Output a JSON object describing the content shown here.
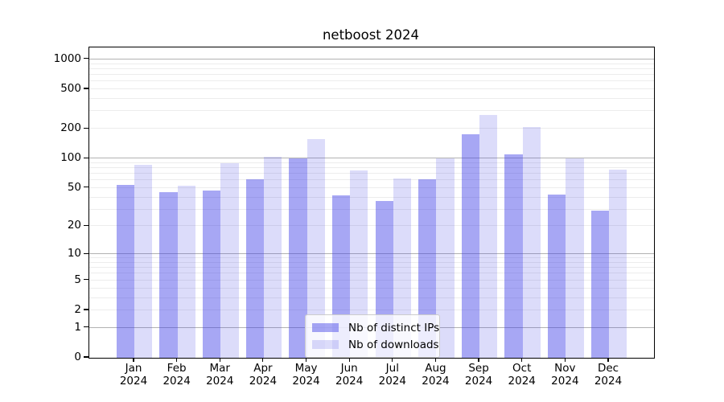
{
  "chart_data": {
    "type": "bar",
    "title": "netboost 2024",
    "year": "2024",
    "categories": [
      "Jan",
      "Feb",
      "Mar",
      "Apr",
      "May",
      "Jun",
      "Jul",
      "Aug",
      "Sep",
      "Oct",
      "Nov",
      "Dec"
    ],
    "series": [
      {
        "name": "Nb of distinct IPs",
        "color": "rgba(60,60,230,0.45)",
        "values": [
          54,
          45,
          47,
          61,
          100,
          42,
          37,
          61,
          177,
          110,
          43,
          29
        ]
      },
      {
        "name": "Nb of downloads",
        "color": "rgba(60,60,230,0.18)",
        "values": [
          87,
          53,
          90,
          104,
          158,
          76,
          62,
          100,
          277,
          210,
          100,
          77
        ]
      }
    ],
    "xlabel": "",
    "ylabel": "",
    "y_scale": "log10(1+x)",
    "y_ticks": [
      0,
      1,
      2,
      5,
      10,
      20,
      50,
      100,
      200,
      500,
      1000
    ],
    "y_major_gridlines": [
      1,
      10,
      100,
      1000
    ],
    "ylim": [
      0,
      1320
    ],
    "grid": "on",
    "legend_position": "lower-center"
  }
}
